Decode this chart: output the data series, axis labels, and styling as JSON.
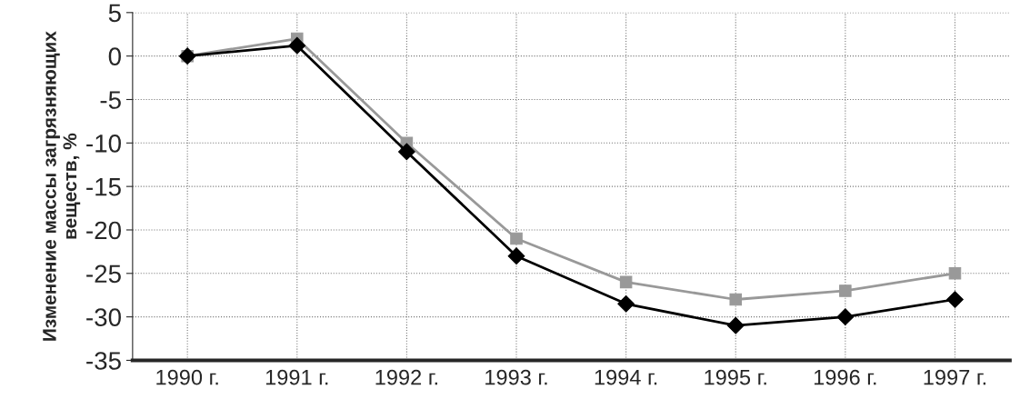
{
  "chart_data": {
    "type": "line",
    "ylabel": "Изменение массы загрязняющих веществ, %",
    "categories": [
      "1990 г.",
      "1991 г.",
      "1992 г.",
      "1993 г.",
      "1994 г.",
      "1995 г.",
      "1996 г.",
      "1997 г."
    ],
    "series": [
      {
        "color": "#999999",
        "marker": "square",
        "values": [
          0,
          2,
          -10,
          -21,
          -26,
          -28,
          -27,
          -25
        ]
      },
      {
        "color": "#000000",
        "marker": "diamond",
        "values": [
          0,
          1.2,
          -11,
          -23,
          -28.5,
          -31,
          -30,
          -28
        ]
      }
    ],
    "ylim": [
      -35,
      5
    ],
    "yticks": [
      -35,
      -30,
      -25,
      -20,
      -15,
      -10,
      -5,
      0,
      5
    ],
    "grid": true,
    "line_style": "solid",
    "legend": false
  }
}
